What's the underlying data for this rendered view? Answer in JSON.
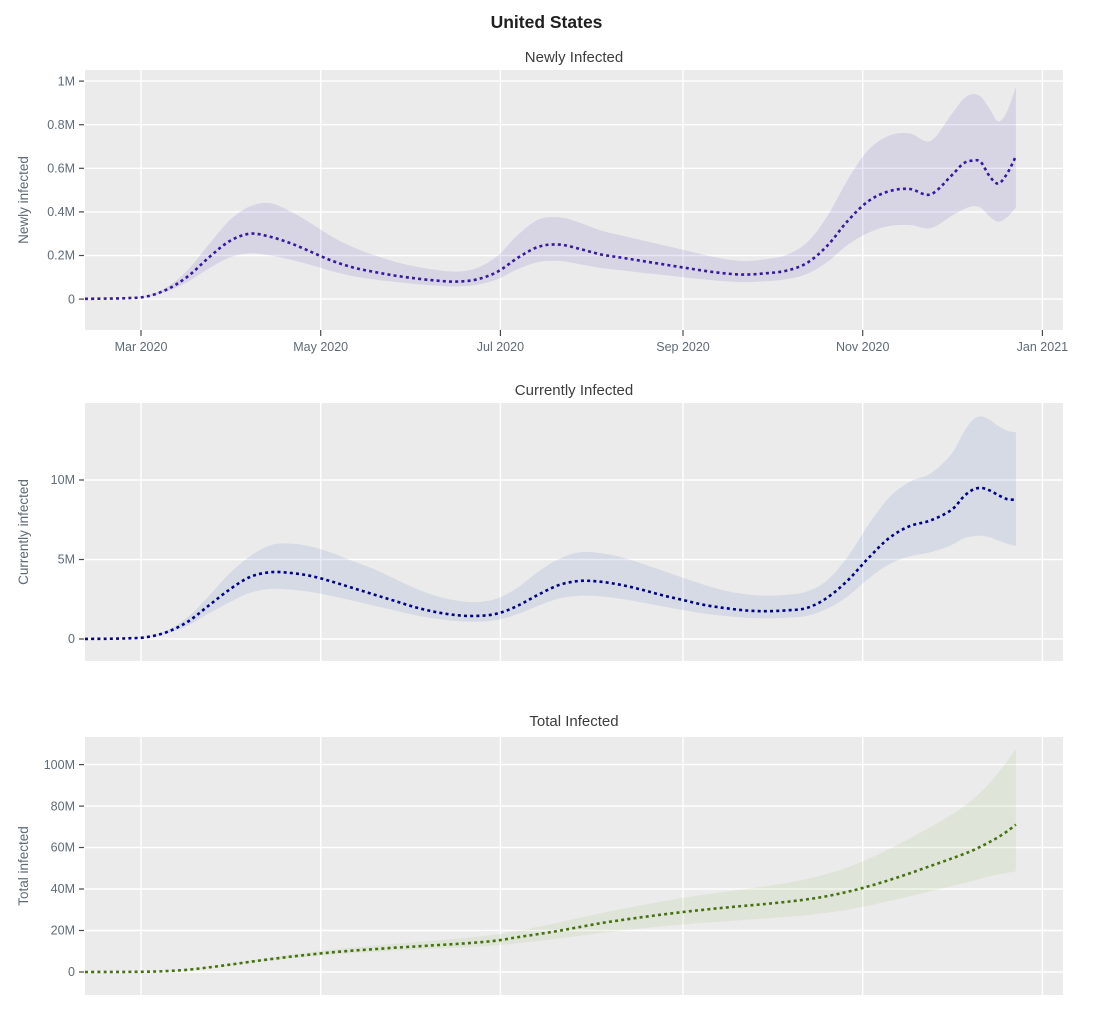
{
  "title": "United States",
  "colors": {
    "page_bg": "#ffffff",
    "plot_bg": "#ebebeb",
    "grid": "#ffffff",
    "tick_mark": "#4a4a4a",
    "tick_text": "#5f6b76",
    "subplot_title_text": "#3d3d3d",
    "main_title_text": "#1f1f1f",
    "newly_line": "#36199c",
    "currently_line": "#00008b",
    "total_line": "#46710f"
  },
  "x_axis": {
    "range": [
      "2020-02-11",
      "2021-01-08"
    ],
    "ticks": [
      {
        "date": "2020-03-01",
        "label": "Mar 2020"
      },
      {
        "date": "2020-05-01",
        "label": "May 2020"
      },
      {
        "date": "2020-07-01",
        "label": "Jul 2020"
      },
      {
        "date": "2020-09-01",
        "label": "Sep 2020"
      },
      {
        "date": "2020-11-01",
        "label": "Nov 2020"
      },
      {
        "date": "2021-01-01",
        "label": "Jan 2021"
      }
    ],
    "dates": [
      "2020-02-11",
      "2020-02-18",
      "2020-02-25",
      "2020-03-03",
      "2020-03-10",
      "2020-03-17",
      "2020-03-24",
      "2020-03-31",
      "2020-04-07",
      "2020-04-14",
      "2020-04-21",
      "2020-04-28",
      "2020-05-05",
      "2020-05-12",
      "2020-05-19",
      "2020-05-26",
      "2020-06-02",
      "2020-06-09",
      "2020-06-16",
      "2020-06-23",
      "2020-06-30",
      "2020-07-07",
      "2020-07-14",
      "2020-07-21",
      "2020-07-28",
      "2020-08-04",
      "2020-08-11",
      "2020-08-18",
      "2020-08-25",
      "2020-09-01",
      "2020-09-08",
      "2020-09-15",
      "2020-09-22",
      "2020-09-29",
      "2020-10-06",
      "2020-10-13",
      "2020-10-20",
      "2020-10-27",
      "2020-11-03",
      "2020-11-10",
      "2020-11-17",
      "2020-11-24",
      "2020-12-01",
      "2020-12-05",
      "2020-12-08",
      "2020-12-11",
      "2020-12-14",
      "2020-12-17",
      "2020-12-20",
      "2020-12-23"
    ]
  },
  "chart_data": [
    {
      "type": "line",
      "title": "Newly Infected",
      "ylabel": "Newly infected",
      "units": "millions",
      "line_style": "dotted",
      "line_color": "#36199c",
      "band_color": "rgba(87,60,185,0.13)",
      "ylim": [
        -0.142,
        1.051
      ],
      "show_x_labels": true,
      "y_ticks": [
        {
          "v": 0,
          "label": "0"
        },
        {
          "v": 0.2,
          "label": "0.2M"
        },
        {
          "v": 0.4,
          "label": "0.4M"
        },
        {
          "v": 0.6,
          "label": "0.6M"
        },
        {
          "v": 0.8,
          "label": "0.8M"
        },
        {
          "v": 1.0,
          "label": "1M"
        }
      ],
      "values": [
        0.001,
        0.002,
        0.004,
        0.012,
        0.045,
        0.105,
        0.19,
        0.265,
        0.3,
        0.285,
        0.255,
        0.215,
        0.175,
        0.145,
        0.125,
        0.108,
        0.095,
        0.085,
        0.08,
        0.09,
        0.125,
        0.19,
        0.24,
        0.25,
        0.23,
        0.205,
        0.19,
        0.175,
        0.16,
        0.145,
        0.13,
        0.118,
        0.112,
        0.118,
        0.13,
        0.165,
        0.245,
        0.36,
        0.45,
        0.495,
        0.505,
        0.48,
        0.565,
        0.62,
        0.635,
        0.63,
        0.565,
        0.53,
        0.575,
        0.655
      ],
      "lower": [
        0.001,
        0.002,
        0.004,
        0.01,
        0.035,
        0.08,
        0.14,
        0.19,
        0.21,
        0.2,
        0.18,
        0.155,
        0.127,
        0.105,
        0.09,
        0.079,
        0.069,
        0.062,
        0.058,
        0.066,
        0.091,
        0.138,
        0.17,
        0.175,
        0.16,
        0.143,
        0.132,
        0.121,
        0.111,
        0.1,
        0.09,
        0.082,
        0.078,
        0.082,
        0.091,
        0.115,
        0.17,
        0.25,
        0.305,
        0.335,
        0.34,
        0.325,
        0.38,
        0.41,
        0.425,
        0.42,
        0.38,
        0.355,
        0.375,
        0.42
      ],
      "upper": [
        0.001,
        0.002,
        0.004,
        0.014,
        0.056,
        0.135,
        0.25,
        0.36,
        0.425,
        0.44,
        0.4,
        0.345,
        0.285,
        0.238,
        0.202,
        0.172,
        0.15,
        0.134,
        0.126,
        0.142,
        0.198,
        0.295,
        0.365,
        0.375,
        0.35,
        0.315,
        0.292,
        0.27,
        0.248,
        0.226,
        0.203,
        0.184,
        0.174,
        0.183,
        0.202,
        0.258,
        0.38,
        0.55,
        0.685,
        0.75,
        0.76,
        0.725,
        0.845,
        0.915,
        0.94,
        0.93,
        0.875,
        0.815,
        0.86,
        0.975
      ]
    },
    {
      "type": "line",
      "title": "Currently Infected",
      "ylabel": "Currently infected",
      "units": "millions",
      "line_style": "dotted",
      "line_color": "#00008b",
      "band_color": "rgba(55,95,185,0.12)",
      "ylim": [
        -1.384,
        14.84
      ],
      "show_x_labels": false,
      "y_ticks": [
        {
          "v": 0,
          "label": "0"
        },
        {
          "v": 5,
          "label": "5M"
        },
        {
          "v": 10,
          "label": "10M"
        }
      ],
      "values": [
        0.005,
        0.015,
        0.04,
        0.12,
        0.45,
        1.1,
        2.1,
        3.1,
        3.9,
        4.2,
        4.15,
        3.95,
        3.6,
        3.2,
        2.8,
        2.4,
        2.0,
        1.7,
        1.5,
        1.45,
        1.6,
        2.1,
        2.8,
        3.4,
        3.65,
        3.6,
        3.4,
        3.1,
        2.75,
        2.45,
        2.15,
        1.95,
        1.8,
        1.75,
        1.8,
        1.95,
        2.6,
        3.7,
        5.1,
        6.35,
        7.1,
        7.45,
        8.1,
        8.9,
        9.35,
        9.5,
        9.35,
        9.05,
        8.8,
        8.75
      ],
      "lower": [
        0.005,
        0.015,
        0.04,
        0.1,
        0.36,
        0.85,
        1.6,
        2.3,
        2.9,
        3.15,
        3.1,
        2.95,
        2.7,
        2.4,
        2.1,
        1.8,
        1.5,
        1.28,
        1.13,
        1.09,
        1.2,
        1.58,
        2.1,
        2.55,
        2.72,
        2.68,
        2.52,
        2.3,
        2.05,
        1.82,
        1.6,
        1.45,
        1.34,
        1.3,
        1.34,
        1.45,
        1.9,
        2.7,
        3.8,
        4.7,
        5.2,
        5.45,
        5.9,
        6.3,
        6.45,
        6.5,
        6.4,
        6.2,
        6.0,
        5.85
      ],
      "upper": [
        0.005,
        0.015,
        0.04,
        0.14,
        0.55,
        1.4,
        2.7,
        4.1,
        5.2,
        5.9,
        6.0,
        5.8,
        5.4,
        4.9,
        4.4,
        3.8,
        3.2,
        2.72,
        2.42,
        2.32,
        2.55,
        3.25,
        4.25,
        5.05,
        5.45,
        5.4,
        5.15,
        4.75,
        4.3,
        3.85,
        3.42,
        3.05,
        2.82,
        2.72,
        2.78,
        2.98,
        3.7,
        5.2,
        7.2,
        8.9,
        9.9,
        10.4,
        11.6,
        12.9,
        13.7,
        14.0,
        13.8,
        13.4,
        13.1,
        13.0
      ]
    },
    {
      "type": "line",
      "title": "Total Infected",
      "ylabel": "Total infected",
      "units": "millions",
      "line_style": "dotted",
      "line_color": "#46710f",
      "band_color": "rgba(120,165,60,0.10)",
      "ylim": [
        -11.1,
        113.3
      ],
      "show_x_labels": false,
      "y_ticks": [
        {
          "v": 0,
          "label": "0"
        },
        {
          "v": 20,
          "label": "20M"
        },
        {
          "v": 40,
          "label": "40M"
        },
        {
          "v": 60,
          "label": "60M"
        },
        {
          "v": 80,
          "label": "80M"
        },
        {
          "v": 100,
          "label": "100M"
        }
      ],
      "values": [
        0.005,
        0.02,
        0.05,
        0.14,
        0.45,
        1.1,
        2.2,
        3.5,
        4.9,
        6.2,
        7.4,
        8.5,
        9.5,
        10.3,
        11.0,
        11.7,
        12.3,
        12.9,
        13.5,
        14.2,
        15.2,
        16.8,
        18.3,
        19.9,
        21.7,
        23.5,
        25.0,
        26.4,
        27.7,
        28.9,
        30.0,
        31.0,
        31.9,
        32.8,
        33.8,
        35.0,
        36.6,
        38.7,
        41.3,
        44.3,
        47.6,
        51.1,
        54.6,
        56.7,
        58.4,
        60.4,
        62.6,
        65.0,
        67.8,
        71.0
      ],
      "lower": [
        0.005,
        0.02,
        0.05,
        0.14,
        0.43,
        1.0,
        2.0,
        3.2,
        4.5,
        5.6,
        6.6,
        7.6,
        8.4,
        9.1,
        9.7,
        10.2,
        10.7,
        11.2,
        11.7,
        12.2,
        12.9,
        13.9,
        15.0,
        16.2,
        17.5,
        18.8,
        19.9,
        21.0,
        22.0,
        22.9,
        23.7,
        24.4,
        25.1,
        25.8,
        26.5,
        27.4,
        28.6,
        30.1,
        32.0,
        34.2,
        36.5,
        38.9,
        41.3,
        42.7,
        43.8,
        45.0,
        46.2,
        47.0,
        47.8,
        48.5
      ],
      "upper": [
        0.005,
        0.02,
        0.05,
        0.14,
        0.47,
        1.2,
        2.4,
        3.8,
        5.4,
        6.9,
        8.3,
        9.6,
        10.8,
        11.8,
        12.7,
        13.6,
        14.4,
        15.2,
        16.0,
        17.0,
        18.2,
        19.9,
        21.8,
        23.9,
        26.1,
        28.3,
        30.3,
        32.2,
        34.0,
        35.7,
        37.2,
        38.6,
        40.0,
        41.4,
        42.9,
        44.8,
        47.3,
        50.5,
        54.6,
        59.3,
        64.4,
        69.9,
        75.7,
        79.5,
        82.8,
        86.6,
        91.0,
        96.0,
        101.5,
        107.5
      ]
    }
  ]
}
